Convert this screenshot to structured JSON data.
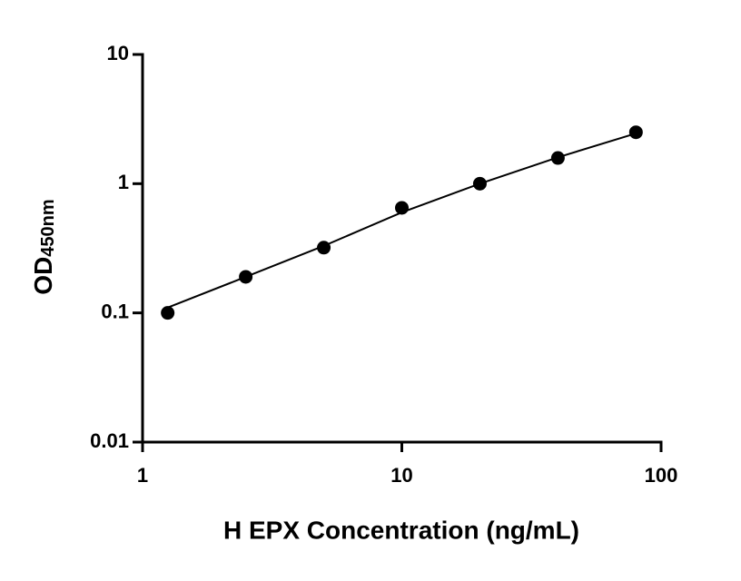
{
  "chart_data": {
    "type": "scatter",
    "x_label": "H EPX Concentration (ng/mL)",
    "y_label": "OD",
    "y_label_subscript": "450nm",
    "x": [
      1.25,
      2.5,
      5,
      10,
      20,
      40,
      80
    ],
    "series": [
      {
        "mark": "dot",
        "color": "#000000",
        "values": [
          0.1,
          0.19,
          0.32,
          0.65,
          1.0,
          1.58,
          2.5
        ]
      },
      {
        "mark": "line",
        "color": "#000000",
        "values": [
          0.11,
          0.19,
          0.33,
          0.6,
          1.0,
          1.6,
          2.45
        ]
      }
    ],
    "xlim": [
      1,
      100
    ],
    "xticks": [
      1,
      10,
      100
    ],
    "xscale": "log",
    "ylim": [
      0.01,
      10
    ],
    "yticks": [
      0.01,
      0.1,
      1,
      10
    ],
    "yscale": "log"
  }
}
